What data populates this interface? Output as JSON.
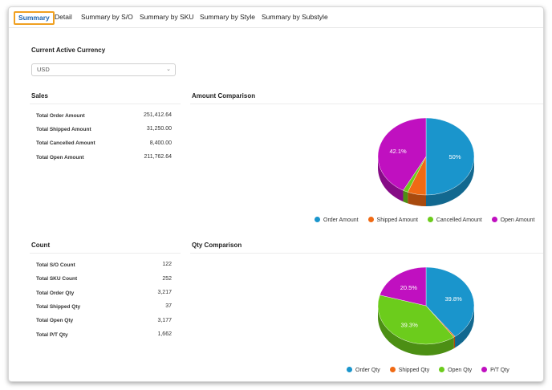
{
  "tabs": [
    {
      "label": "Summary",
      "active": true
    },
    {
      "label": "Detail"
    },
    {
      "label": "Summary by S/O"
    },
    {
      "label": "Summary by SKU"
    },
    {
      "label": "Summary by Style"
    },
    {
      "label": "Summary by Substyle"
    }
  ],
  "currency": {
    "title": "Current Active Currency",
    "selected": "USD"
  },
  "sales": {
    "title": "Sales",
    "rows": [
      {
        "label": "Total Order Amount",
        "value": "251,412.64"
      },
      {
        "label": "Total Shipped Amount",
        "value": "31,250.00"
      },
      {
        "label": "Total Cancelled Amount",
        "value": "8,400.00"
      },
      {
        "label": "Total Open Amount",
        "value": "211,762.64"
      }
    ]
  },
  "count": {
    "title": "Count",
    "rows": [
      {
        "label": "Total S/O Count",
        "value": "122"
      },
      {
        "label": "Total SKU Count",
        "value": "252"
      },
      {
        "label": "Total Order Qty",
        "value": "3,217"
      },
      {
        "label": "Total Shipped Qty",
        "value": "37"
      },
      {
        "label": "Total Open Qty",
        "value": "3,177"
      },
      {
        "label": "Total P/T Qty",
        "value": "1,662"
      }
    ]
  },
  "amount_chart": {
    "title": "Amount Comparison",
    "legend": [
      "Order Amount",
      "Shipped Amount",
      "Cancelled Amount",
      "Open Amount"
    ],
    "slice_labels": [
      "50%",
      "42.1%"
    ]
  },
  "qty_chart": {
    "title": "Qty Comparison",
    "legend": [
      "Order Qty",
      "Shipped Qty",
      "Open Qty",
      "P/T Qty"
    ],
    "slice_labels": [
      "39.8%",
      "39.3%",
      "20.5%"
    ]
  },
  "colors": {
    "blue": "#1a95cc",
    "orange": "#f06a14",
    "green": "#6ccc1c",
    "magenta": "#c010c0",
    "active_tab_border": "#f0a020"
  },
  "chart_data": [
    {
      "type": "pie",
      "title": "Amount Comparison",
      "categories": [
        "Order Amount",
        "Shipped Amount",
        "Cancelled Amount",
        "Open Amount"
      ],
      "values": [
        251412.64,
        31250.0,
        8400.0,
        211762.64
      ],
      "slice_labels": {
        "Order Amount": "50%",
        "Open Amount": "42.1%"
      },
      "legend": "bottom"
    },
    {
      "type": "pie",
      "title": "Qty Comparison",
      "categories": [
        "Order Qty",
        "Shipped Qty",
        "Open Qty",
        "P/T Qty"
      ],
      "values": [
        3217,
        37,
        3177,
        1662
      ],
      "slice_labels": {
        "Order Qty": "39.8%",
        "Open Qty": "39.3%",
        "P/T Qty": "20.5%"
      },
      "legend": "bottom"
    }
  ]
}
